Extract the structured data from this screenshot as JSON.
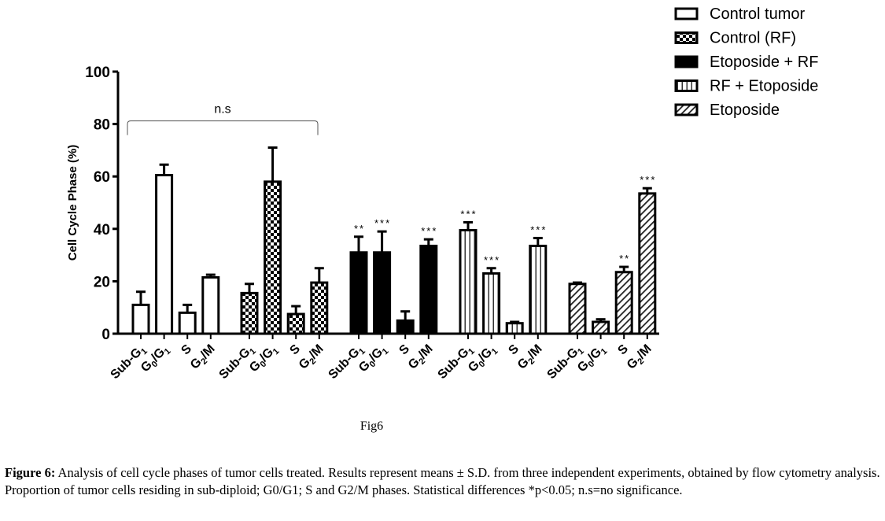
{
  "chart_data": {
    "type": "bar",
    "title": "",
    "ylabel": "Cell Cycle Phase (%)",
    "xlabel": "",
    "ylim": [
      0,
      100
    ],
    "yticks": [
      0,
      20,
      40,
      60,
      80,
      100
    ],
    "grid": false,
    "legend_position": "top-right",
    "categories": [
      "Sub-G1",
      "G0/G1",
      "S",
      "G2/M"
    ],
    "category_labels": [
      {
        "main": "Sub-G",
        "sub": "1",
        "tail": ""
      },
      {
        "main": "G",
        "sub": "0",
        "tail": "/G",
        "sub2": "1"
      },
      {
        "main": "S",
        "sub": "",
        "tail": ""
      },
      {
        "main": "G",
        "sub": "2",
        "tail": "/M"
      }
    ],
    "series": [
      {
        "name": "Control tumor",
        "pattern": "open",
        "values": [
          11,
          60.5,
          8,
          21.5
        ],
        "errors": [
          5,
          4,
          3,
          1
        ],
        "significance": [
          "",
          "",
          "",
          ""
        ]
      },
      {
        "name": "Control (RF)",
        "pattern": "checker",
        "values": [
          15.5,
          58,
          7.5,
          19.5
        ],
        "errors": [
          3.5,
          13,
          3,
          5.5
        ],
        "significance": [
          "",
          "",
          "",
          ""
        ]
      },
      {
        "name": "Etoposide + RF",
        "pattern": "solid",
        "values": [
          31,
          31,
          5,
          33.5
        ],
        "errors": [
          6,
          8,
          3.5,
          2.5
        ],
        "significance": [
          "**",
          "***",
          "",
          "***"
        ]
      },
      {
        "name": "RF + Etoposide",
        "pattern": "vertical",
        "values": [
          39.5,
          23,
          4,
          33.5
        ],
        "errors": [
          3,
          2,
          0.5,
          3
        ],
        "significance": [
          "***",
          "***",
          "",
          "***"
        ]
      },
      {
        "name": "Etoposide",
        "pattern": "diagonal",
        "values": [
          19,
          4.5,
          23.5,
          53.5
        ],
        "errors": [
          0.5,
          1,
          2,
          2
        ],
        "significance": [
          "",
          "",
          "**",
          "***"
        ]
      }
    ],
    "annotations": [
      {
        "text": "n.s",
        "type": "bracket",
        "spans_series": [
          "Control tumor",
          "Control (RF)"
        ],
        "y_value": 80
      }
    ]
  },
  "figure_label": "Fig6",
  "caption": {
    "label": "Figure 6:",
    "text": " Analysis of cell cycle phases of tumor cells treated. Results represent means ± S.D. from three independent experiments, obtained by flow cytometry analysis. Proportion of tumor cells residing in sub-diploid; G0/G1; S and G2/M phases. Statistical differences *p<0.05; n.s=no significance."
  }
}
